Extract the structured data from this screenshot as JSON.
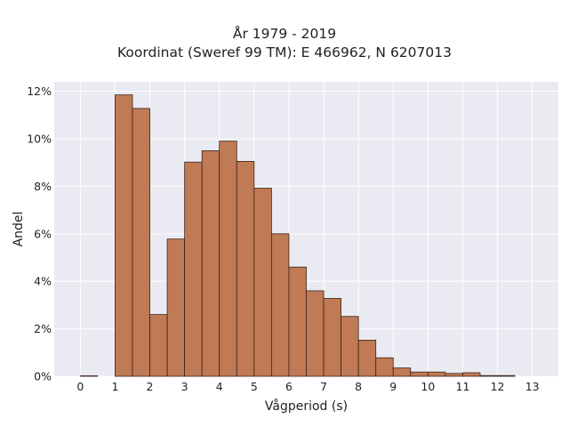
{
  "chart_data": {
    "type": "bar",
    "title": "År 1979 - 2019",
    "subtitle": "Koordinat (Sweref 99 TM): E 466962, N 6207013",
    "xlabel": "Vågperiod (s)",
    "ylabel": "Andel",
    "x_ticks": [
      0,
      1,
      2,
      3,
      4,
      5,
      6,
      7,
      8,
      9,
      10,
      11,
      12,
      13
    ],
    "y_ticks": [
      0,
      2,
      4,
      6,
      8,
      10,
      12
    ],
    "y_tick_suffix": "%",
    "xlim": [
      -0.75,
      13.75
    ],
    "ylim": [
      0,
      12.4
    ],
    "bin_width": 0.5,
    "bin_starts": [
      0,
      0.5,
      1,
      1.5,
      2,
      2.5,
      3,
      3.5,
      4,
      4.5,
      5,
      5.5,
      6,
      6.5,
      7,
      7.5,
      8,
      8.5,
      9,
      9.5,
      10,
      10.5,
      11,
      11.5,
      12,
      12.5
    ],
    "values": [
      0.02,
      0,
      11.85,
      11.28,
      2.6,
      5.78,
      9.02,
      9.5,
      9.9,
      9.05,
      7.92,
      6.0,
      4.6,
      3.6,
      3.28,
      2.52,
      1.52,
      0.78,
      0.35,
      0.18,
      0.18,
      0.12,
      0.15,
      0.03,
      0.03,
      0
    ],
    "bar_color": "#c07a55",
    "bar_edge_color": "#3a2418",
    "plot_background": "#eaeaf2",
    "grid": true
  }
}
